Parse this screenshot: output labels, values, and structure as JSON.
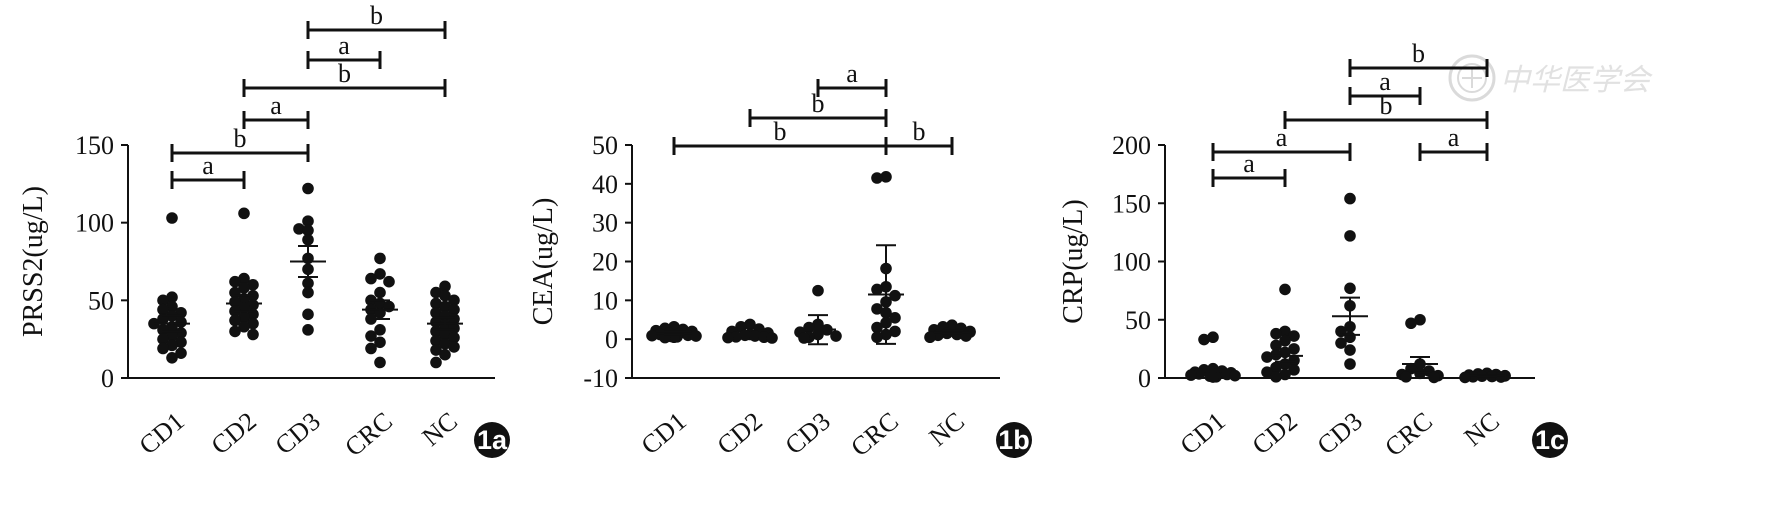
{
  "chart_data": [
    {
      "type": "scatter",
      "panel_tag": "1a",
      "ylabel": "PRSS2(ug/L)",
      "ylim": [
        0,
        150
      ],
      "yticks": [
        0,
        50,
        100,
        150
      ],
      "categories": [
        "CD1",
        "CD2",
        "CD3",
        "CRC",
        "NC"
      ],
      "groups": [
        {
          "name": "CD1",
          "points": [
            103,
            52,
            50,
            46,
            44,
            42,
            40,
            38,
            36,
            35,
            33,
            31,
            29,
            27,
            25,
            23,
            21,
            19,
            16,
            13
          ],
          "mean": 35,
          "err_low": 30,
          "err_high": 40
        },
        {
          "name": "CD2",
          "points": [
            106,
            64,
            62,
            60,
            58,
            55,
            53,
            51,
            49,
            47,
            45,
            43,
            41,
            39,
            37,
            35,
            33,
            30,
            28
          ],
          "mean": 48,
          "err_low": 43,
          "err_high": 53
        },
        {
          "name": "CD3",
          "points": [
            122,
            101,
            96,
            95,
            89,
            77,
            70,
            61,
            55,
            41,
            31
          ],
          "mean": 75,
          "err_low": 65,
          "err_high": 85
        },
        {
          "name": "CRC",
          "points": [
            77,
            67,
            64,
            62,
            55,
            50,
            48,
            46,
            44,
            42,
            38,
            31,
            27,
            23,
            19,
            10
          ],
          "mean": 44,
          "err_low": 38,
          "err_high": 50
        },
        {
          "name": "NC",
          "points": [
            59,
            55,
            53,
            50,
            48,
            46,
            44,
            42,
            40,
            38,
            36,
            34,
            32,
            30,
            28,
            26,
            24,
            22,
            20,
            18,
            15,
            10
          ],
          "mean": 35,
          "err_low": 31,
          "err_high": 39
        }
      ],
      "comparisons": [
        {
          "from": "CD1",
          "to": "CD2",
          "label": "a"
        },
        {
          "from": "CD1",
          "to": "CD3",
          "label": "b"
        },
        {
          "from": "CD2",
          "to": "CD3",
          "label": "a"
        },
        {
          "from": "CD2",
          "to": "NC",
          "label": "b"
        },
        {
          "from": "CD3",
          "to": "CRC",
          "label": "a"
        },
        {
          "from": "CD3",
          "to": "NC",
          "label": "b"
        }
      ]
    },
    {
      "type": "scatter",
      "panel_tag": "1b",
      "ylabel": "CEA(ug/L)",
      "ylim": [
        -10,
        50
      ],
      "yticks": [
        -10,
        0,
        10,
        20,
        30,
        40,
        50
      ],
      "categories": [
        "CD1",
        "CD2",
        "CD3",
        "CRC",
        "NC"
      ],
      "groups": [
        {
          "name": "CD1",
          "points": [
            3.2,
            2.8,
            2.5,
            2.2,
            2,
            1.8,
            1.6,
            1.4,
            1.2,
            1,
            0.9,
            0.8,
            0.7,
            0.6,
            0.5,
            0.4
          ],
          "mean": 1.5,
          "err_low": 1.1,
          "err_high": 1.9
        },
        {
          "name": "CD2",
          "points": [
            3.8,
            3.2,
            2.6,
            2,
            1.6,
            1.2,
            1,
            0.8,
            0.6,
            0.5,
            0.4,
            0.3
          ],
          "mean": 1.2,
          "err_low": 0.8,
          "err_high": 1.6
        },
        {
          "name": "CD3",
          "points": [
            12.5,
            3.8,
            3,
            2.4,
            1.8,
            1.2,
            0.8,
            0.5,
            0.3
          ],
          "mean": 2.5,
          "err_low": -1.3,
          "err_high": 6.2
        },
        {
          "name": "CRC",
          "points": [
            41.8,
            41.5,
            18.2,
            13.5,
            12.8,
            11.2,
            9.6,
            7.8,
            6.8,
            5.5,
            4.2,
            3,
            2,
            1.2,
            0.5
          ],
          "mean": 11.5,
          "err_low": -1.2,
          "err_high": 24.2
        },
        {
          "name": "NC",
          "points": [
            3.6,
            3.2,
            2.8,
            2.4,
            2,
            1.8,
            1.5,
            1.2,
            1,
            0.8,
            0.5
          ],
          "mean": 1.8,
          "err_low": 1.4,
          "err_high": 2.2
        }
      ],
      "comparisons": [
        {
          "from": "CD1",
          "to": "CRC",
          "label": "b"
        },
        {
          "from": "CRC",
          "to": "NC",
          "label": "b"
        },
        {
          "from": "CD2",
          "to": "CRC",
          "label": "b"
        },
        {
          "from": "CD3",
          "to": "CRC",
          "label": "a"
        }
      ]
    },
    {
      "type": "scatter",
      "panel_tag": "1c",
      "ylabel": "CRP(ug/L)",
      "ylim": [
        0,
        200
      ],
      "yticks": [
        0,
        50,
        100,
        150,
        200
      ],
      "categories": [
        "CD1",
        "CD2",
        "CD3",
        "CRC",
        "NC"
      ],
      "groups": [
        {
          "name": "CD1",
          "points": [
            35,
            33,
            8,
            7,
            6,
            5,
            4.5,
            4,
            3.5,
            3,
            2.5,
            2,
            1.5,
            1,
            0.8
          ],
          "mean": 6,
          "err_low": 3,
          "err_high": 9
        },
        {
          "name": "CD2",
          "points": [
            76,
            40,
            38,
            36,
            32,
            28,
            25,
            22,
            20,
            18,
            15,
            12,
            9,
            7,
            5,
            3,
            1
          ],
          "mean": 19,
          "err_low": 14,
          "err_high": 25
        },
        {
          "name": "CD3",
          "points": [
            154,
            122,
            77,
            62,
            44,
            40,
            35,
            30,
            24,
            12
          ],
          "mean": 53,
          "err_low": 37,
          "err_high": 69
        },
        {
          "name": "CRC",
          "points": [
            50,
            47,
            12,
            8,
            6,
            4,
            3,
            2,
            1,
            0.5
          ],
          "mean": 12,
          "err_low": 5,
          "err_high": 18
        },
        {
          "name": "NC",
          "points": [
            4,
            3.5,
            3,
            2.5,
            2,
            1.8,
            1.5,
            1.2,
            1,
            0.8,
            0.5
          ],
          "mean": 2,
          "err_low": 1.5,
          "err_high": 2.5
        }
      ],
      "comparisons": [
        {
          "from": "CD1",
          "to": "CD2",
          "label": "a"
        },
        {
          "from": "CD1",
          "to": "CD3",
          "label": "a"
        },
        {
          "from": "CRC",
          "to": "NC",
          "label": "a"
        },
        {
          "from": "CD2",
          "to": "NC",
          "label": "b"
        },
        {
          "from": "CD3",
          "to": "CRC",
          "label": "a"
        },
        {
          "from": "CD3",
          "to": "NC",
          "label": "b"
        }
      ]
    }
  ]
}
